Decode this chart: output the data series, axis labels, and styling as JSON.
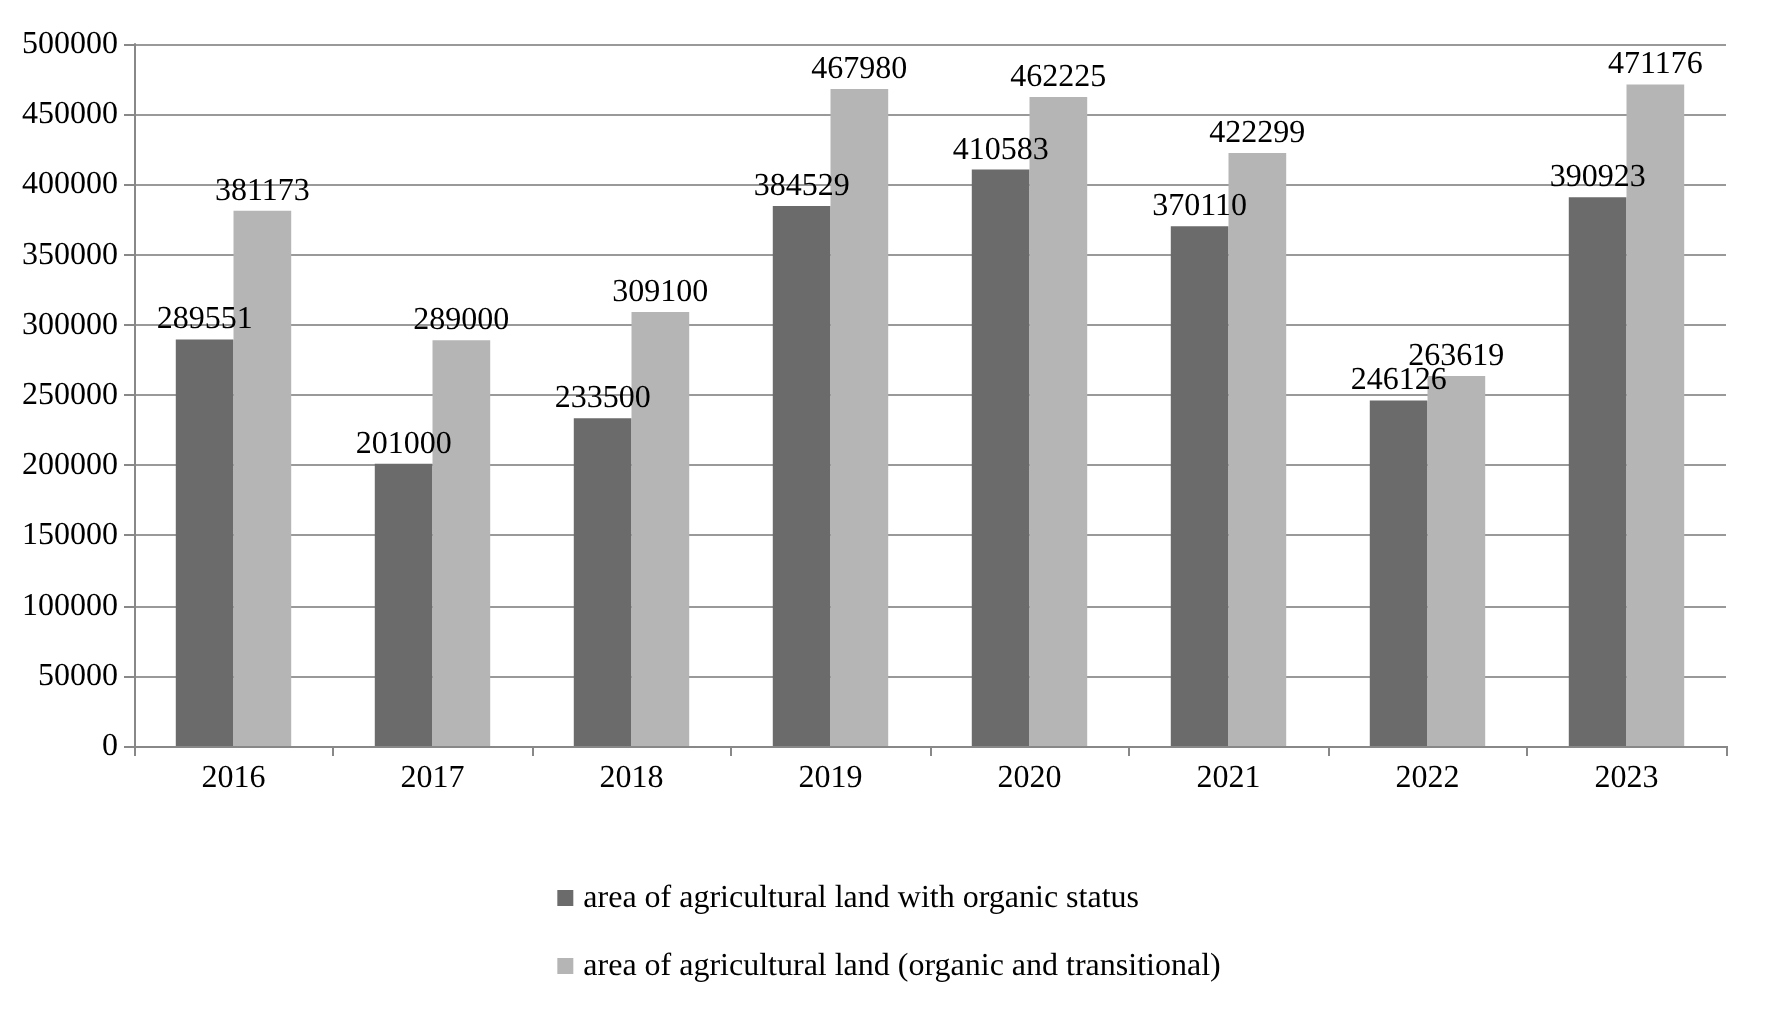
{
  "chart_data": {
    "type": "bar",
    "categories": [
      "2016",
      "2017",
      "2018",
      "2019",
      "2020",
      "2021",
      "2022",
      "2023"
    ],
    "series": [
      {
        "name": "area of agricultural land with organic status",
        "color": "#6b6b6b",
        "values": [
          289551,
          201000,
          233500,
          384529,
          410583,
          370110,
          246126,
          390923
        ]
      },
      {
        "name": "area of agricultural land (organic and transitional)",
        "color": "#b5b5b5",
        "values": [
          381173,
          289000,
          309100,
          467980,
          462225,
          422299,
          263619,
          471176
        ]
      }
    ],
    "ylim": [
      0,
      500000
    ],
    "yticks": [
      0,
      50000,
      100000,
      150000,
      200000,
      250000,
      300000,
      350000,
      400000,
      450000,
      500000
    ],
    "grid": "y",
    "legend": "bottom",
    "data_labels": true
  }
}
